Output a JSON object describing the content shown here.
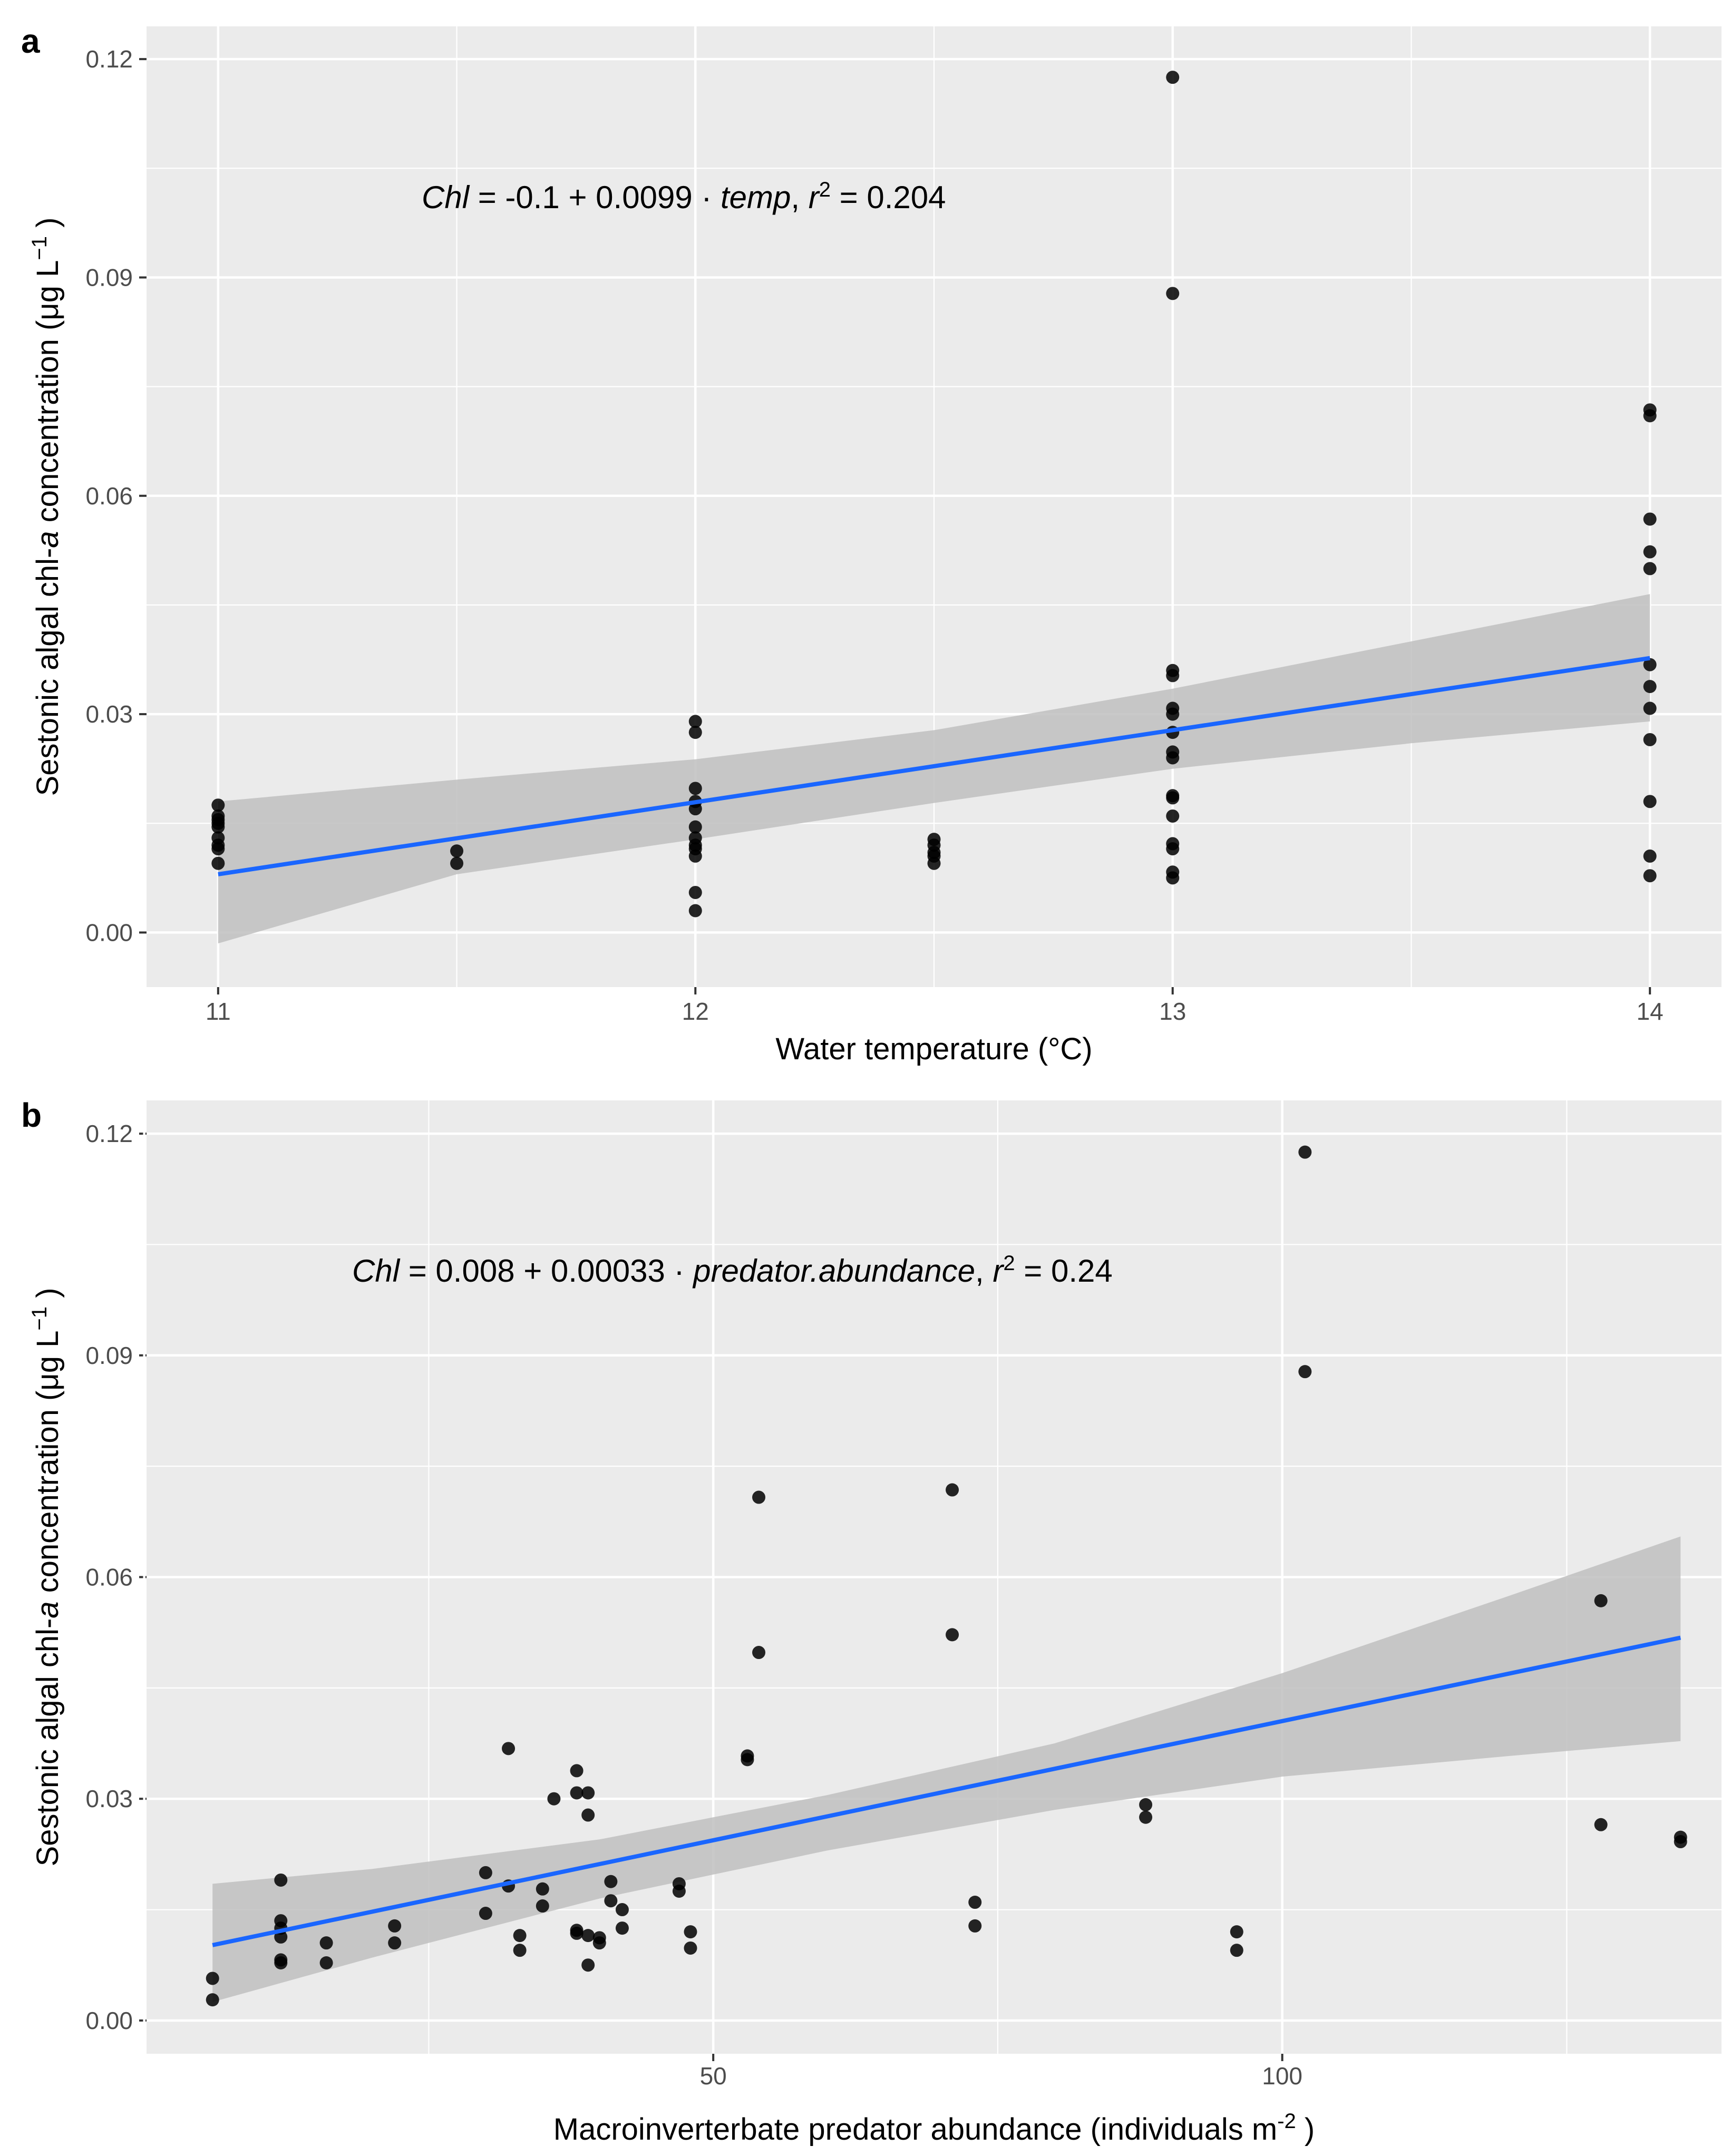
{
  "chart_data": [
    {
      "panel": "a",
      "type": "scatter",
      "xlabel": "Water temperature (°C)",
      "ylabel": {
        "pre": "Sestonic algal chl-",
        "ital": "a",
        "post": "  concentration (μg L",
        "sup": "−1",
        "end": " )"
      },
      "x_ticks": [
        "11",
        "12",
        "13",
        "14"
      ],
      "y_ticks": [
        "0.00",
        "0.03",
        "0.06",
        "0.09",
        "0.12"
      ],
      "xlim": [
        10.85,
        14.15
      ],
      "ylim": [
        -0.0075,
        0.1245
      ],
      "grid": true,
      "equation": {
        "lhs": "Chl",
        "rhs": " = -0.1 + 0.0099 · ",
        "var": "temp",
        "r2_pre": ",  ",
        "r": "r",
        "sup": "2",
        "r2_post": " = 0.204"
      },
      "points": [
        [
          11,
          0.0175
        ],
        [
          11,
          0.016
        ],
        [
          11,
          0.0155
        ],
        [
          11,
          0.015
        ],
        [
          11,
          0.0145
        ],
        [
          11,
          0.013
        ],
        [
          11,
          0.012
        ],
        [
          11,
          0.0115
        ],
        [
          11,
          0.0095
        ],
        [
          11.5,
          0.0112
        ],
        [
          11.5,
          0.0095
        ],
        [
          12,
          0.029
        ],
        [
          12,
          0.0275
        ],
        [
          12,
          0.0198
        ],
        [
          12,
          0.018
        ],
        [
          12,
          0.017
        ],
        [
          12,
          0.0145
        ],
        [
          12,
          0.013
        ],
        [
          12,
          0.012
        ],
        [
          12,
          0.0115
        ],
        [
          12,
          0.0105
        ],
        [
          12,
          0.0055
        ],
        [
          12,
          0.003
        ],
        [
          12.5,
          0.0128
        ],
        [
          12.5,
          0.012
        ],
        [
          12.5,
          0.011
        ],
        [
          12.5,
          0.0105
        ],
        [
          12.5,
          0.0095
        ],
        [
          13,
          0.1175
        ],
        [
          13,
          0.0878
        ],
        [
          13,
          0.036
        ],
        [
          13,
          0.0353
        ],
        [
          13,
          0.0308
        ],
        [
          13,
          0.03
        ],
        [
          13,
          0.0275
        ],
        [
          13,
          0.0248
        ],
        [
          13,
          0.024
        ],
        [
          13,
          0.0188
        ],
        [
          13,
          0.0185
        ],
        [
          13,
          0.016
        ],
        [
          13,
          0.0122
        ],
        [
          13,
          0.0115
        ],
        [
          13,
          0.0083
        ],
        [
          13,
          0.0075
        ],
        [
          14,
          0.0718
        ],
        [
          14,
          0.071
        ],
        [
          14,
          0.0568
        ],
        [
          14,
          0.0523
        ],
        [
          14,
          0.05
        ],
        [
          14,
          0.0368
        ],
        [
          14,
          0.0338
        ],
        [
          14,
          0.0308
        ],
        [
          14,
          0.0265
        ],
        [
          14,
          0.018
        ],
        [
          14,
          0.0105
        ],
        [
          14,
          0.0078
        ]
      ],
      "fit": {
        "x": [
          11,
          14
        ],
        "y": [
          0.008,
          0.0377
        ]
      },
      "band": {
        "x": [
          11,
          11.5,
          12,
          12.5,
          13,
          13.5,
          14
        ],
        "lower": [
          -0.0015,
          0.008,
          0.0128,
          0.0178,
          0.0225,
          0.026,
          0.029
        ],
        "upper": [
          0.018,
          0.021,
          0.0238,
          0.0278,
          0.0335,
          0.04,
          0.0465
        ]
      },
      "colors": {
        "panel_bg": "#ebebeb",
        "grid": "#ffffff",
        "point": "#000000",
        "fit": "#1a66ff",
        "band": "#bdbdbd"
      }
    },
    {
      "panel": "b",
      "type": "scatter",
      "xlabel": {
        "main": "Macroinverterbate predator abundance (individuals m",
        "sup": "-2",
        "end": " )"
      },
      "ylabel": {
        "pre": "Sestonic algal chl-",
        "ital": "a",
        "post": "  concentration (μg L",
        "sup": "−1",
        "end": " )"
      },
      "x_ticks": [
        "50",
        "100"
      ],
      "x_tick_values": [
        50,
        100
      ],
      "y_ticks": [
        "0.00",
        "0.03",
        "0.06",
        "0.09",
        "0.12"
      ],
      "xlim": [
        0.2,
        138.6
      ],
      "ylim": [
        -0.0045,
        0.1245
      ],
      "grid": true,
      "equation": {
        "lhs": "Chl",
        "rhs": " = 0.008 + 0.00033 · ",
        "var": "predator.abundance",
        "r2_pre": ",  ",
        "r": "r",
        "sup": "2",
        "r2_post": " = 0.24"
      },
      "points": [
        [
          6,
          0.0057
        ],
        [
          6,
          0.0028
        ],
        [
          12,
          0.019
        ],
        [
          12,
          0.0135
        ],
        [
          12,
          0.0125
        ],
        [
          12,
          0.0113
        ],
        [
          12,
          0.0082
        ],
        [
          12,
          0.0078
        ],
        [
          16,
          0.0105
        ],
        [
          16,
          0.0078
        ],
        [
          22,
          0.0128
        ],
        [
          22,
          0.0105
        ],
        [
          30,
          0.02
        ],
        [
          30,
          0.0145
        ],
        [
          32,
          0.0368
        ],
        [
          32,
          0.0182
        ],
        [
          33,
          0.0115
        ],
        [
          33,
          0.0095
        ],
        [
          35,
          0.0178
        ],
        [
          35,
          0.0155
        ],
        [
          36,
          0.03
        ],
        [
          38,
          0.0338
        ],
        [
          38,
          0.0308
        ],
        [
          38,
          0.0122
        ],
        [
          38,
          0.0118
        ],
        [
          39,
          0.0308
        ],
        [
          39,
          0.0278
        ],
        [
          39,
          0.0115
        ],
        [
          39,
          0.0075
        ],
        [
          40,
          0.0112
        ],
        [
          40,
          0.0105
        ],
        [
          41,
          0.0188
        ],
        [
          41,
          0.0162
        ],
        [
          42,
          0.015
        ],
        [
          42,
          0.0125
        ],
        [
          47,
          0.0185
        ],
        [
          47,
          0.0175
        ],
        [
          48,
          0.012
        ],
        [
          48,
          0.0098
        ],
        [
          53,
          0.0358
        ],
        [
          53,
          0.0353
        ],
        [
          54,
          0.0708
        ],
        [
          54,
          0.0498
        ],
        [
          71,
          0.0718
        ],
        [
          71,
          0.0522
        ],
        [
          73,
          0.016
        ],
        [
          73,
          0.0128
        ],
        [
          88,
          0.0292
        ],
        [
          88,
          0.0275
        ],
        [
          96,
          0.012
        ],
        [
          96,
          0.0095
        ],
        [
          102,
          0.1175
        ],
        [
          102,
          0.0878
        ],
        [
          128,
          0.0568
        ],
        [
          128,
          0.0265
        ],
        [
          135,
          0.0248
        ],
        [
          135,
          0.0242
        ]
      ],
      "fit": {
        "x": [
          6,
          135
        ],
        "y": [
          0.0102,
          0.0518
        ]
      },
      "band": {
        "x": [
          6,
          20,
          40,
          60,
          80,
          100,
          120,
          135
        ],
        "lower": [
          0.0025,
          0.0085,
          0.0165,
          0.023,
          0.0285,
          0.033,
          0.0358,
          0.0378
        ],
        "upper": [
          0.0185,
          0.0205,
          0.0245,
          0.0305,
          0.0375,
          0.047,
          0.0575,
          0.0655
        ]
      },
      "colors": {
        "panel_bg": "#ebebeb",
        "grid": "#ffffff",
        "point": "#000000",
        "fit": "#1a66ff",
        "band": "#bdbdbd"
      }
    }
  ]
}
